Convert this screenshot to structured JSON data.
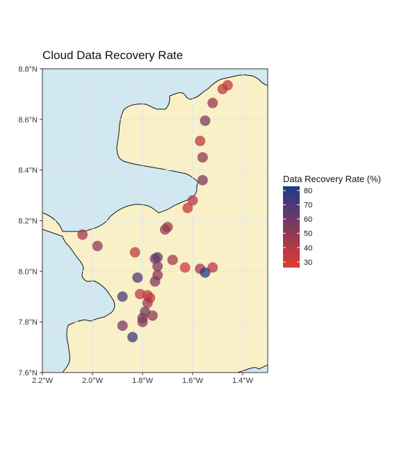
{
  "chart_data": {
    "type": "scatter",
    "title": "Cloud Data Recovery Rate",
    "xlabel": "",
    "ylabel": "",
    "xlim": [
      -2.2,
      -1.3
    ],
    "ylim": [
      7.6,
      8.8
    ],
    "x_ticks": [
      {
        "value": -2.2,
        "label": "2.2°W"
      },
      {
        "value": -2.0,
        "label": "2.0°W"
      },
      {
        "value": -1.8,
        "label": "1.8°W"
      },
      {
        "value": -1.6,
        "label": "1.6°W"
      },
      {
        "value": -1.4,
        "label": "1.4°W"
      }
    ],
    "y_ticks": [
      {
        "value": 7.6,
        "label": "7.6°N"
      },
      {
        "value": 7.8,
        "label": "7.8°N"
      },
      {
        "value": 8.0,
        "label": "8.0°N"
      },
      {
        "value": 8.2,
        "label": "8.2°N"
      },
      {
        "value": 8.4,
        "label": "8.4°N"
      },
      {
        "value": 8.6,
        "label": "8.6°N"
      },
      {
        "value": 8.8,
        "label": "8.8°N"
      }
    ],
    "grid": true,
    "legend": {
      "title": "Data Recovery Rate (%)",
      "placement": "right",
      "min": 26,
      "max": 83,
      "ticks": [
        80,
        70,
        60,
        50,
        40,
        30
      ]
    },
    "colors": {
      "low": "#e03a2f",
      "high": "#1e3a8a",
      "water": "#d1e8f0",
      "land": "#faf0c8",
      "grid": "#dfe6ea"
    },
    "points": [
      {
        "lon": -1.46,
        "lat": 8.735,
        "value": 35
      },
      {
        "lon": -1.48,
        "lat": 8.72,
        "value": 37
      },
      {
        "lon": -1.52,
        "lat": 8.665,
        "value": 48
      },
      {
        "lon": -1.55,
        "lat": 8.595,
        "value": 55
      },
      {
        "lon": -1.57,
        "lat": 8.515,
        "value": 36
      },
      {
        "lon": -1.56,
        "lat": 8.45,
        "value": 50
      },
      {
        "lon": -1.56,
        "lat": 8.36,
        "value": 55
      },
      {
        "lon": -1.6,
        "lat": 8.28,
        "value": 40
      },
      {
        "lon": -1.62,
        "lat": 8.25,
        "value": 34
      },
      {
        "lon": -1.7,
        "lat": 8.175,
        "value": 45
      },
      {
        "lon": -1.71,
        "lat": 8.165,
        "value": 48
      },
      {
        "lon": -2.04,
        "lat": 8.145,
        "value": 44
      },
      {
        "lon": -1.98,
        "lat": 8.1,
        "value": 50
      },
      {
        "lon": -1.83,
        "lat": 8.075,
        "value": 36
      },
      {
        "lon": -1.74,
        "lat": 8.055,
        "value": 60
      },
      {
        "lon": -1.75,
        "lat": 8.05,
        "value": 62
      },
      {
        "lon": -1.68,
        "lat": 8.045,
        "value": 46
      },
      {
        "lon": -1.74,
        "lat": 8.02,
        "value": 55
      },
      {
        "lon": -1.63,
        "lat": 8.015,
        "value": 32
      },
      {
        "lon": -1.57,
        "lat": 8.01,
        "value": 44
      },
      {
        "lon": -1.52,
        "lat": 8.015,
        "value": 38
      },
      {
        "lon": -1.55,
        "lat": 7.995,
        "value": 80
      },
      {
        "lon": -1.74,
        "lat": 7.985,
        "value": 52
      },
      {
        "lon": -1.82,
        "lat": 7.975,
        "value": 68
      },
      {
        "lon": -1.75,
        "lat": 7.96,
        "value": 55
      },
      {
        "lon": -1.81,
        "lat": 7.91,
        "value": 36
      },
      {
        "lon": -1.78,
        "lat": 7.905,
        "value": 34
      },
      {
        "lon": -1.77,
        "lat": 7.895,
        "value": 35
      },
      {
        "lon": -1.88,
        "lat": 7.9,
        "value": 70
      },
      {
        "lon": -1.78,
        "lat": 7.875,
        "value": 45
      },
      {
        "lon": -1.79,
        "lat": 7.84,
        "value": 58
      },
      {
        "lon": -1.76,
        "lat": 7.825,
        "value": 50
      },
      {
        "lon": -1.8,
        "lat": 7.815,
        "value": 56
      },
      {
        "lon": -1.8,
        "lat": 7.8,
        "value": 54
      },
      {
        "lon": -1.88,
        "lat": 7.785,
        "value": 55
      },
      {
        "lon": -1.84,
        "lat": 7.74,
        "value": 72
      }
    ]
  }
}
